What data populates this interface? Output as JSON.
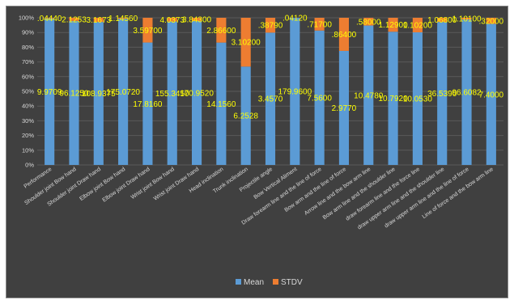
{
  "chart_data": {
    "type": "bar",
    "stacked": "percent",
    "categories": [
      "Performance",
      "Shoulder joint Bow hand",
      "Shoulder joint Draw hand",
      "Elbow joint Bow hand",
      "Elbow joint Draw hand",
      "Wrist joint Bow hand",
      "Wrist joint Draw hand",
      "Head inclination",
      "Trunk inclination",
      "Projectile angle",
      "Bow Vertical Aliment",
      "Draw forearm line and the line of force",
      "Bow arm and the line of force",
      "Arrow line and the bow arm line",
      "Bow arm line and the shoulder line",
      "draw forearm line and the force line",
      "draw upper arm line and the shoulder line",
      "draw upper arm line and the line of force",
      "Line of force and the bow arm line"
    ],
    "series": [
      {
        "name": "Mean",
        "color": "#5b9bd5",
        "values": [
          9.9709,
          96.125,
          108.9375,
          175.072,
          17.816,
          155.345,
          170.952,
          14.156,
          6.2528,
          3.457,
          179.96,
          7.56,
          2.977,
          10.478,
          10.792,
          10.053,
          36.539,
          96.6082,
          7.4
        ],
        "labels": [
          "9.9709",
          "96.1250",
          "108.9375",
          "175.0720",
          "17.8160",
          "155.3450",
          "170.9520",
          "14.1560",
          "6.2528",
          "3.4570",
          "179.9600",
          "7.5600",
          "2.9770",
          "10.4780",
          "10.7920",
          "10.0530",
          "36.5390",
          "96.6082",
          "7.4000"
        ]
      },
      {
        "name": "STDV",
        "color": "#ed7d31",
        "values": [
          0.0444,
          2.1253,
          3.1673,
          1.1456,
          3.597,
          4.0373,
          3.843,
          2.866,
          3.102,
          0.3879,
          0.0412,
          0.717,
          0.864,
          0.58,
          1.129,
          1.102,
          1.068,
          1.101,
          0.32
        ],
        "labels": [
          ".04440",
          "2.1253",
          "3.1673",
          "1.14560",
          "3.59700",
          "4.0373",
          "3.84300",
          "2.86600",
          "3.10200",
          ".38790",
          ".04120",
          ".71700",
          ".86400",
          ".58000",
          "1.12900",
          "1.10200",
          "1.06800",
          "1.10100",
          ".32000"
        ]
      }
    ],
    "yticks": [
      "0%",
      "10%",
      "20%",
      "30%",
      "40%",
      "50%",
      "60%",
      "70%",
      "80%",
      "90%",
      "100%"
    ],
    "ylim": [
      0,
      100
    ],
    "grid": true,
    "legend": "bottom"
  }
}
